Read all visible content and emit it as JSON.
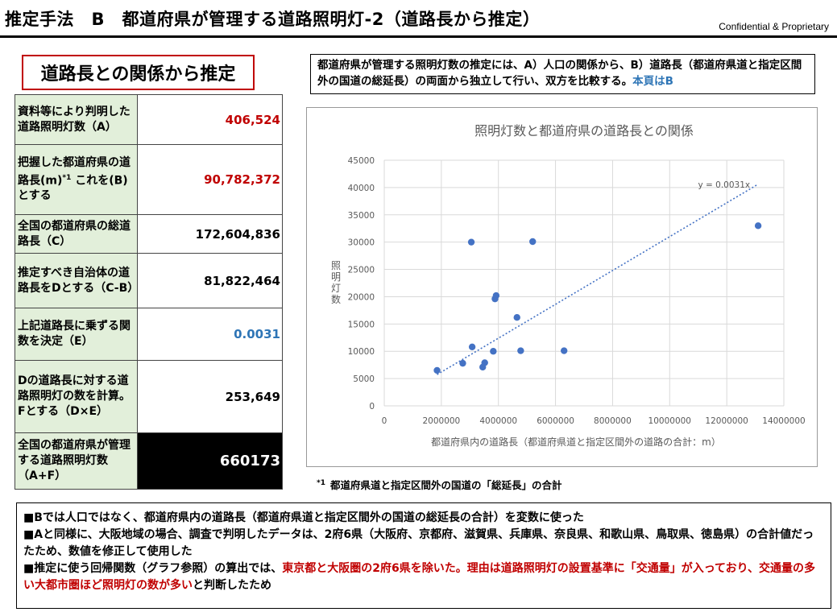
{
  "header": {
    "title": "推定手法　B　都道府県が管理する道路照明灯-2（道路長から推定）",
    "confidential": "Confidential &  Proprietary"
  },
  "section_title": "道路長との関係から推定",
  "table": {
    "rows": [
      {
        "label": "資料等により判明した道路照明灯数（A）",
        "value": "406,524"
      },
      {
        "label_pre": "把握した都道府県の道路長(m)",
        "label_sup": "*1",
        "label_post": " これを(B)とする",
        "value": "90,782,372"
      },
      {
        "label": "全国の都道府県の総道路長（C）",
        "value": "172,604,836"
      },
      {
        "label": "推定すべき自治体の道路長をDとする（C-B）",
        "value": "81,822,464"
      },
      {
        "label": "上記道路長に乗ずる関数を決定（E）",
        "value": "0.0031"
      },
      {
        "label": "Dの道路長に対する道路照明灯の数を計算。Fとする（D×E）",
        "value": "253,649"
      },
      {
        "label": "全国の都道府県が管理する道路照明灯数（A+F）",
        "value": "660173"
      }
    ]
  },
  "note": {
    "text": "都道府県が管理する照明灯数の推定には、A）人口の関係から、B）道路長（都道府県道と指定区間外の国道の総延長）の両面から独立して行い、双方を比較する。",
    "highlight": "本頁はB"
  },
  "footnote": {
    "marker": "*1",
    "text": "都道府県道と指定区間外の国道の「総延長」の合計"
  },
  "bullets": {
    "b1": "■Bでは人口ではなく、都道府県内の道路長（都道府県道と指定区間外の国道の総延長の合計）を変数に使った",
    "b2": "■Aと同様に、大阪地域の場合、調査で判明したデータは、2府6県（大阪府、京都府、滋賀県、兵庫県、奈良県、和歌山県、鳥取県、徳島県）の合計値だったため、数値を修正して使用した",
    "b3_pre": "■推定に使う回帰関数（グラフ参照）の算出では、",
    "b3_red": "東京都と大阪圏の2府6県を除いた。理由は道路照明灯の設置基準に「交通量」が入っており、交通量の多い大都市圏ほど照明灯の数が多い",
    "b3_post": "と判断したため"
  },
  "chart_data": {
    "type": "scatter",
    "title": "照明灯数と都道府県の道路長との関係",
    "xlabel": "都道府県内の道路長（都道府県道と指定区間外の道路の合計：m）",
    "ylabel": "照明灯数",
    "xlim": [
      0,
      14000000
    ],
    "ylim": [
      0,
      45000
    ],
    "x_ticks": [
      0,
      2000000,
      4000000,
      6000000,
      8000000,
      10000000,
      12000000,
      14000000
    ],
    "y_ticks": [
      0,
      5000,
      10000,
      15000,
      20000,
      25000,
      30000,
      35000,
      40000,
      45000
    ],
    "points": [
      {
        "x": 1850000,
        "y": 6500
      },
      {
        "x": 2750000,
        "y": 7800
      },
      {
        "x": 3050000,
        "y": 30000
      },
      {
        "x": 3080000,
        "y": 10800
      },
      {
        "x": 3450000,
        "y": 7100
      },
      {
        "x": 3520000,
        "y": 7900
      },
      {
        "x": 3820000,
        "y": 10000
      },
      {
        "x": 3880000,
        "y": 19600
      },
      {
        "x": 3920000,
        "y": 20200
      },
      {
        "x": 4650000,
        "y": 16200
      },
      {
        "x": 4780000,
        "y": 10100
      },
      {
        "x": 5200000,
        "y": 30100
      },
      {
        "x": 6300000,
        "y": 10100
      },
      {
        "x": 13100000,
        "y": 33000
      }
    ],
    "trendline": {
      "slope": 0.0031,
      "x_start": 1850000,
      "x_end": 13100000,
      "label": "y = 0.0031x"
    },
    "colors": {
      "point": "#4472c4",
      "trend": "#4472c4",
      "grid": "#d9d9d9",
      "text": "#595959"
    },
    "grid": true,
    "legend": "none"
  }
}
